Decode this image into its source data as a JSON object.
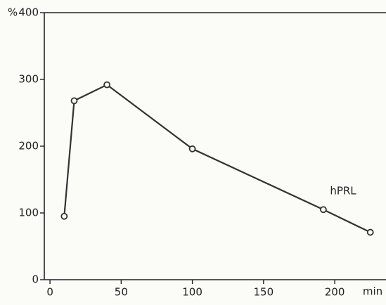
{
  "chart_data": {
    "type": "line",
    "y_label": "%",
    "x_label": "min",
    "x": [
      10,
      17,
      40,
      100,
      192,
      225
    ],
    "series": [
      {
        "name": "hPRL",
        "color": "#333333",
        "values": [
          95,
          268,
          292,
          196,
          105,
          71
        ]
      }
    ],
    "xlim": [
      -4,
      236
    ],
    "ylim": [
      0,
      400
    ],
    "xticks": [
      0,
      50,
      100,
      150,
      200
    ],
    "yticks": [
      0,
      100,
      200,
      300,
      400
    ],
    "grid": false
  }
}
